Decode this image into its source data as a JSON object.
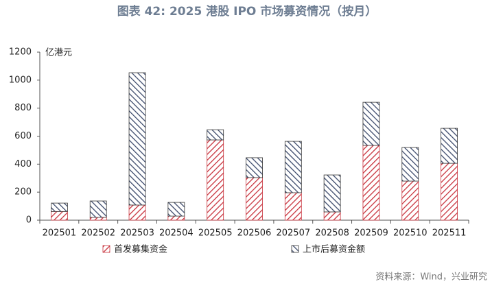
{
  "chart_data": {
    "type": "stacked_bar",
    "title": "图表 42: 2025 港股 IPO 市场募资情况（按月）",
    "y_unit": "亿港元",
    "categories": [
      "202501",
      "202502",
      "202503",
      "202504",
      "202505",
      "202506",
      "202507",
      "202508",
      "202509",
      "202510",
      "202511"
    ],
    "series": [
      {
        "name": "首发募集资金",
        "color": "#c8323c",
        "values": [
          62,
          20,
          108,
          29,
          573,
          304,
          196,
          59,
          534,
          279,
          406
        ]
      },
      {
        "name": "上市后募资金额",
        "color": "#3c4a6b",
        "values": [
          60,
          117,
          945,
          98,
          73,
          142,
          367,
          264,
          308,
          240,
          250
        ]
      }
    ],
    "ylim": [
      0,
      1200
    ],
    "yticks": [
      0,
      200,
      400,
      600,
      800,
      1000,
      1200
    ],
    "source": "资料来源：Wind，兴业研究"
  }
}
